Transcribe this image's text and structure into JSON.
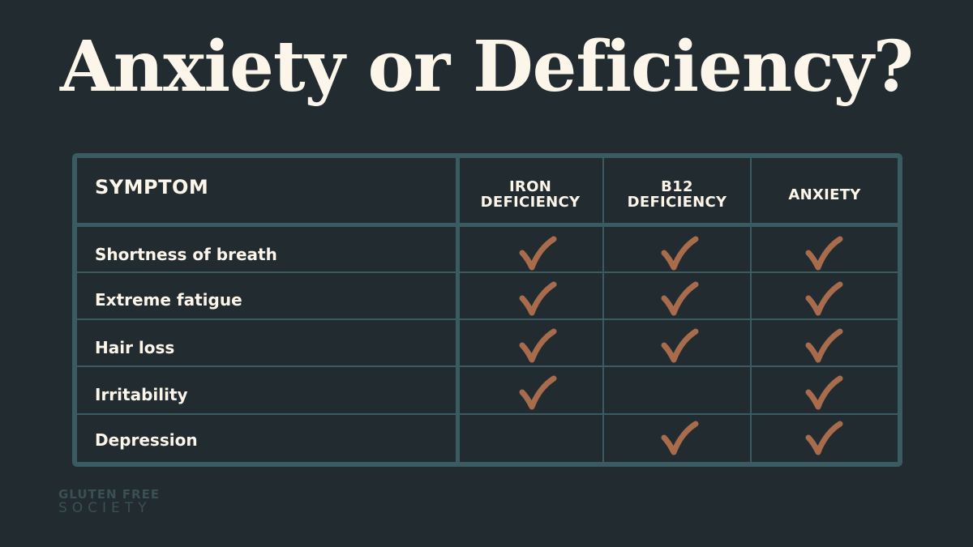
{
  "title": "Anxiety or Deficiency?",
  "table": {
    "headers": {
      "symptom": "SYMPTOM",
      "columns": [
        {
          "line1": "IRON",
          "line2": "DEFICIENCY"
        },
        {
          "line1": "B12",
          "line2": "DEFICIENCY"
        },
        {
          "line1": "ANXIETY",
          "line2": ""
        }
      ]
    },
    "rows": [
      {
        "label": "Shortness of breath",
        "iron": true,
        "b12": true,
        "anxiety": true
      },
      {
        "label": "Extreme fatigue",
        "iron": true,
        "b12": true,
        "anxiety": true
      },
      {
        "label": "Hair loss",
        "iron": true,
        "b12": true,
        "anxiety": true
      },
      {
        "label": "Irritability",
        "iron": true,
        "b12": false,
        "anxiety": true
      },
      {
        "label": "Depression",
        "iron": false,
        "b12": true,
        "anxiety": true
      }
    ]
  },
  "brand": {
    "line1": "GLUTEN FREE",
    "line2": "SOCIETY"
  },
  "colors": {
    "background": "#212b30",
    "grid": "#3a5b61",
    "text": "#fcf5ea",
    "check": "#a86b4b"
  },
  "icons": {
    "check": "checkmark-icon"
  }
}
